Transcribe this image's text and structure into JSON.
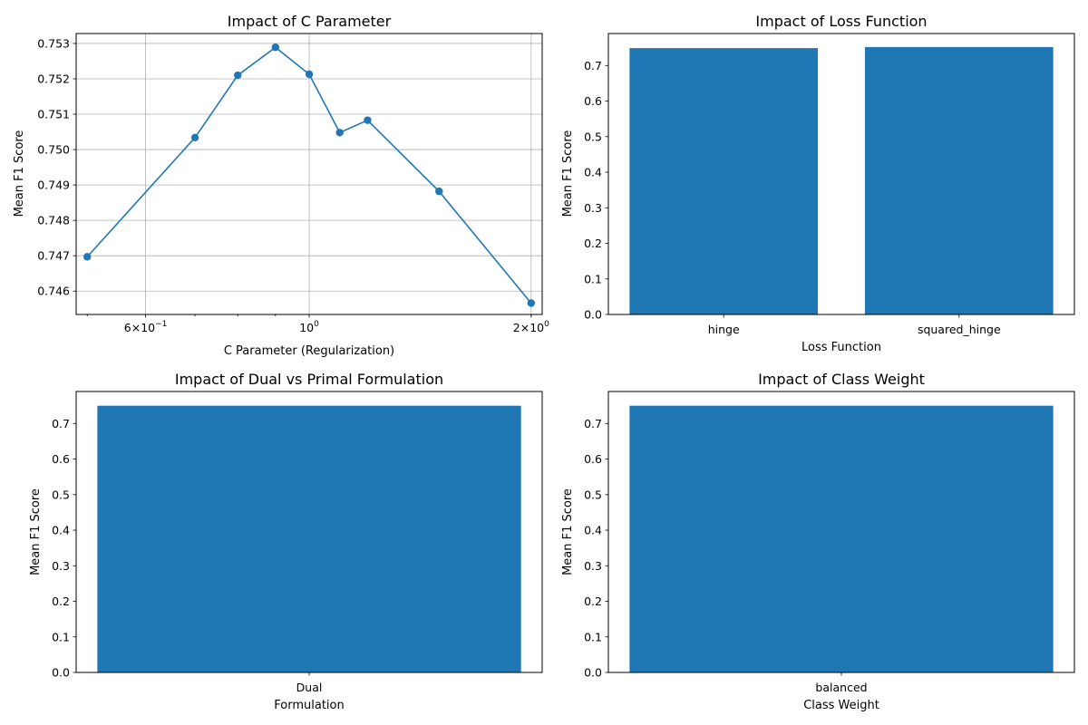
{
  "figure": {
    "background": "#ffffff",
    "bar_color": "#1f77b4",
    "line_color": "#1f77b4",
    "grid_color": "#b0b0b0"
  },
  "chart_data": [
    {
      "type": "line",
      "title": "Impact of C Parameter",
      "xlabel": "C Parameter (Regularization)",
      "ylabel": "Mean F1 Score",
      "xscale": "log",
      "grid": true,
      "markers": "circle",
      "x": [
        0.5,
        0.7,
        0.8,
        0.9,
        1.0,
        1.1,
        1.2,
        1.5,
        2.0
      ],
      "y": [
        0.74697,
        0.75034,
        0.7521,
        0.75289,
        0.75213,
        0.75048,
        0.75083,
        0.74882,
        0.74566
      ],
      "xlim": [
        0.483,
        2.07
      ],
      "ylim": [
        0.74534,
        0.75328
      ],
      "x_ticks": [
        {
          "value": 0.6,
          "base": "6×10",
          "exp": "−1"
        },
        {
          "value": 1.0,
          "base": "10",
          "exp": "0"
        },
        {
          "value": 2.0,
          "base": "2×10",
          "exp": "0"
        }
      ],
      "y_ticks": [
        "0.746",
        "0.747",
        "0.748",
        "0.749",
        "0.750",
        "0.751",
        "0.752",
        "0.753"
      ]
    },
    {
      "type": "bar",
      "title": "Impact of Loss Function",
      "xlabel": "Loss Function",
      "ylabel": "Mean F1 Score",
      "categories": [
        "hinge",
        "squared_hinge"
      ],
      "values": [
        0.749,
        0.752
      ],
      "ylim": [
        0,
        0.79
      ],
      "y_ticks": [
        "0.0",
        "0.1",
        "0.2",
        "0.3",
        "0.4",
        "0.5",
        "0.6",
        "0.7"
      ]
    },
    {
      "type": "bar",
      "title": "Impact of Dual vs Primal Formulation",
      "xlabel": "Formulation",
      "ylabel": "Mean F1 Score",
      "categories": [
        "Dual"
      ],
      "values": [
        0.75
      ],
      "ylim": [
        0,
        0.79
      ],
      "y_ticks": [
        "0.0",
        "0.1",
        "0.2",
        "0.3",
        "0.4",
        "0.5",
        "0.6",
        "0.7"
      ]
    },
    {
      "type": "bar",
      "title": "Impact of Class Weight",
      "xlabel": "Class Weight",
      "ylabel": "Mean F1 Score",
      "categories": [
        "balanced"
      ],
      "values": [
        0.75
      ],
      "ylim": [
        0,
        0.79
      ],
      "y_ticks": [
        "0.0",
        "0.1",
        "0.2",
        "0.3",
        "0.4",
        "0.5",
        "0.6",
        "0.7"
      ]
    }
  ]
}
